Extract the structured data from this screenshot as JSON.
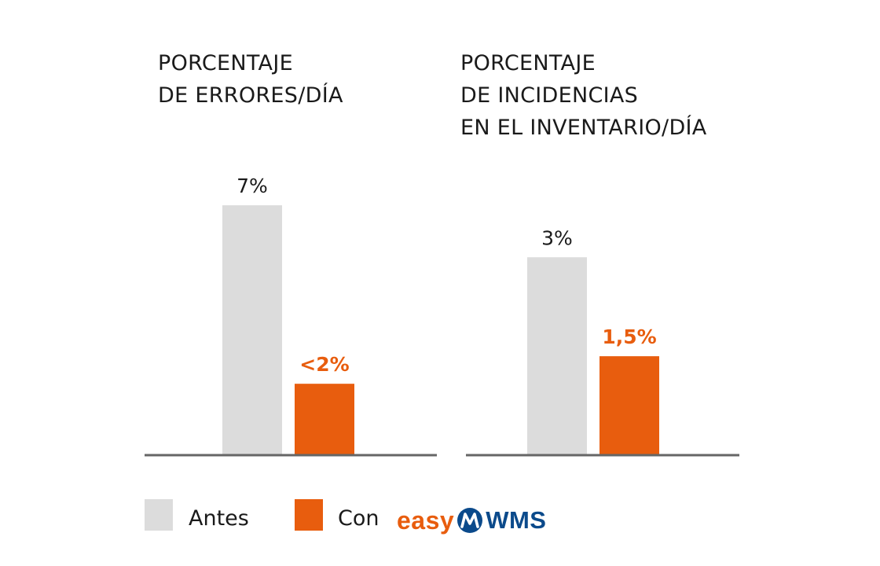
{
  "chart_data": [
    {
      "type": "bar",
      "title_lines": [
        "PORCENTAJE",
        "DE ERRORES/DÍA"
      ],
      "categories": [
        "PORCENTAJE DE ERRORES/DÍA"
      ],
      "series": [
        {
          "name": "Antes",
          "values": [
            7
          ],
          "labels": [
            "7%"
          ]
        },
        {
          "name": "Con easy WMS",
          "values": [
            2
          ],
          "labels": [
            "<2%"
          ]
        }
      ],
      "ylim": [
        0,
        8.5
      ]
    },
    {
      "type": "bar",
      "title_lines": [
        "PORCENTAJE",
        "DE INCIDENCIAS",
        "EN EL INVENTARIO/DÍA"
      ],
      "categories": [
        "PORCENTAJE DE INCIDENCIAS EN EL INVENTARIO/DÍA"
      ],
      "series": [
        {
          "name": "Antes",
          "values": [
            3
          ],
          "labels": [
            "3%"
          ]
        },
        {
          "name": "Con easy WMS",
          "values": [
            1.5
          ],
          "labels": [
            "1,5%"
          ]
        }
      ],
      "ylim": [
        0,
        4.6
      ]
    }
  ],
  "legend": {
    "antes_label": "Antes",
    "con_label": "Con",
    "brand_easy": "easy",
    "brand_wms": "WMS",
    "brand_mark_icon": "easywms-logo-icon"
  },
  "colors": {
    "antes": "#dcdcdc",
    "con": "#e85d0e",
    "axis": "#666666",
    "label_dark": "#1a1a1a",
    "label_accent": "#e85d0e",
    "brand_blue": "#0b4a8b"
  }
}
